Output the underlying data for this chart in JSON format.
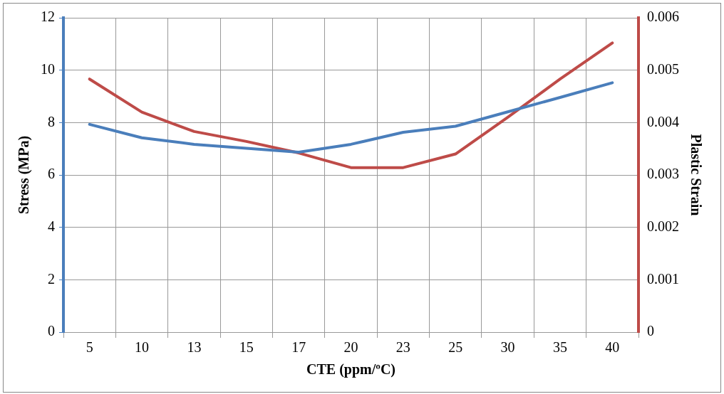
{
  "chart_data": {
    "type": "line",
    "xlabel": "CTE (ppm/ºC)",
    "ylabel": "Stress (MPa)",
    "y2label": "Plastic Strain",
    "categories": [
      "5",
      "10",
      "13",
      "15",
      "17",
      "20",
      "23",
      "25",
      "30",
      "35",
      "40"
    ],
    "series": [
      {
        "color": "#4a7ebb",
        "values": [
          7.93,
          7.42,
          7.17,
          7.02,
          6.87,
          7.17,
          7.63,
          7.86,
          8.41,
          8.96,
          9.52
        ]
      },
      {
        "color": "#be4b48",
        "axis": "y2",
        "values": [
          0.00483,
          0.0042,
          0.00383,
          0.00364,
          0.00342,
          0.00314,
          0.00314,
          0.0034,
          0.0041,
          0.00483,
          0.00552
        ]
      }
    ],
    "ylim": [
      0,
      12
    ],
    "yticks": [
      0,
      2,
      4,
      6,
      8,
      10,
      12
    ],
    "y2lim": [
      0,
      0.006
    ],
    "y2ticks": [
      0,
      0.001,
      0.002,
      0.003,
      0.004,
      0.005,
      0.006
    ],
    "grid": true,
    "legend": false,
    "marker": "none",
    "line_style": "solid"
  }
}
